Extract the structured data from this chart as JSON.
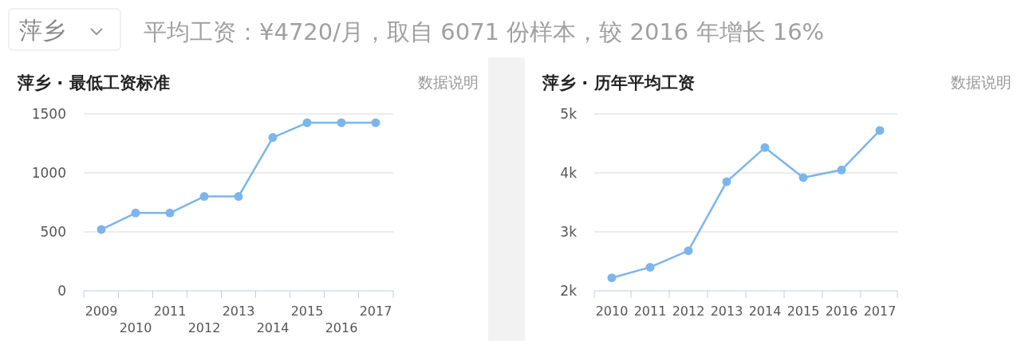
{
  "chart_data": [
    {
      "type": "line",
      "title": "萍乡 · 最低工资标准",
      "annotations": [
        "萍乡",
        "平均工资：¥4720/月，取自 6071 份样本，较 2016 年增长 16%",
        "数据说明"
      ],
      "categories": [
        "2009",
        "2010",
        "2011",
        "2012",
        "2013",
        "2014",
        "2015",
        "2016",
        "2017"
      ],
      "series": [
        {
          "color": "#7cb5ec",
          "values": [
            520,
            660,
            660,
            800,
            800,
            1300,
            1425,
            1425,
            1425
          ]
        }
      ],
      "ylim": [
        0,
        1500
      ],
      "yticks": [
        0,
        500,
        1000,
        1500
      ],
      "grid": "y",
      "marker": "circle"
    },
    {
      "type": "line",
      "title": "萍乡 · 历年平均工资",
      "annotations": [
        "数据说明"
      ],
      "categories": [
        "2010",
        "2011",
        "2012",
        "2013",
        "2014",
        "2015",
        "2016",
        "2017"
      ],
      "series": [
        {
          "color": "#7cb5ec",
          "values": [
            2220,
            2400,
            2680,
            3850,
            4430,
            3920,
            4050,
            4720
          ]
        }
      ],
      "ylim": [
        2000,
        5000
      ],
      "yticks": [
        {
          "value": 2000,
          "label": "2k"
        },
        {
          "value": 3000,
          "label": "3k"
        },
        {
          "value": 4000,
          "label": "4k"
        },
        {
          "value": 5000,
          "label": "5k"
        }
      ],
      "grid": "y",
      "marker": "circle"
    }
  ]
}
